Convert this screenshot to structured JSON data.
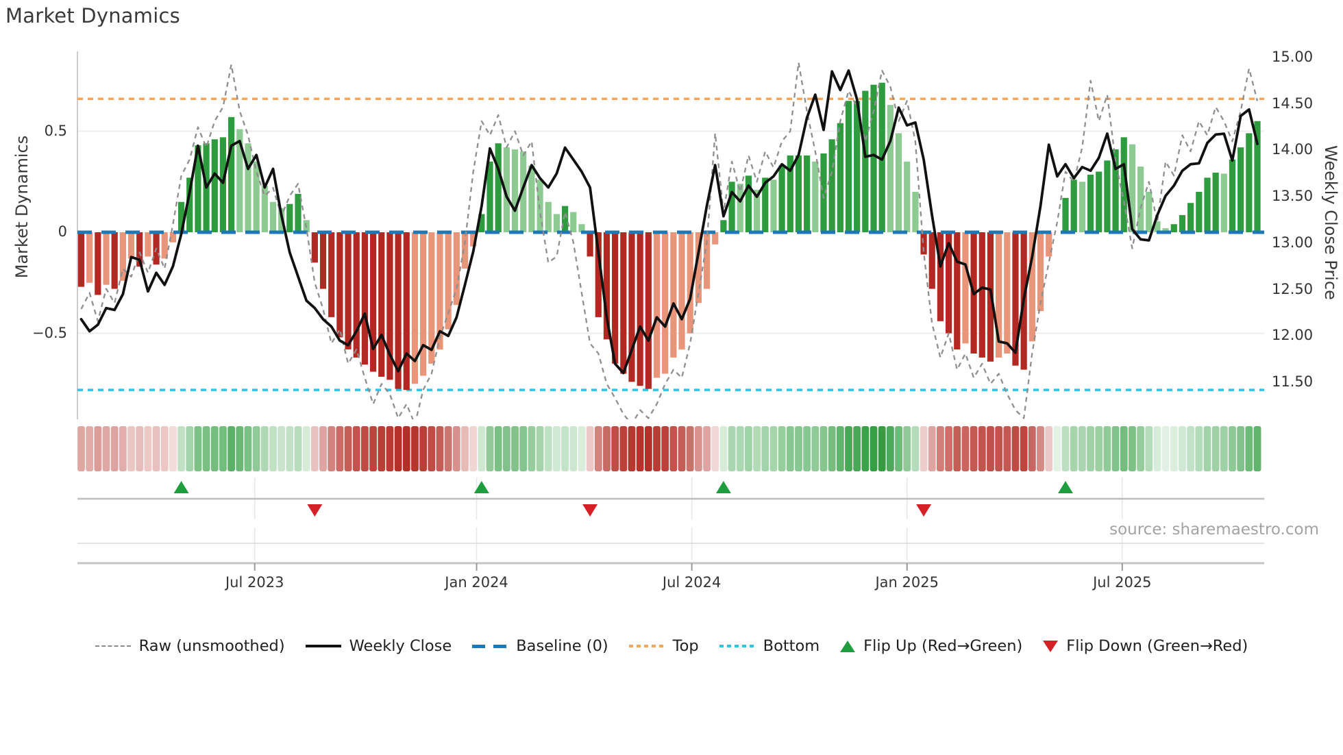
{
  "title": "Market Dynamics",
  "source": "source: sharemaestro.com",
  "axes": {
    "left": {
      "label": "Market Dynamics",
      "ticks": [
        {
          "label": "0.5",
          "value": 0.5
        },
        {
          "label": "0",
          "value": 0
        },
        {
          "label": "−0.5",
          "value": -0.5
        }
      ]
    },
    "right": {
      "label": "Weekly Close Price",
      "ticks": [
        {
          "label": "15.00",
          "value": 15.0
        },
        {
          "label": "14.50",
          "value": 14.5
        },
        {
          "label": "14.00",
          "value": 14.0
        },
        {
          "label": "13.50",
          "value": 13.5
        },
        {
          "label": "13.00",
          "value": 13.0
        },
        {
          "label": "12.50",
          "value": 12.5
        },
        {
          "label": "12.00",
          "value": 12.0
        },
        {
          "label": "11.50",
          "value": 11.5
        }
      ]
    },
    "x": {
      "ticks": [
        {
          "label": "Jul 2023",
          "week": 20.8
        },
        {
          "label": "Jan 2024",
          "week": 47.4
        },
        {
          "label": "Jul 2024",
          "week": 73.2
        },
        {
          "label": "Jan 2025",
          "week": 99.0
        },
        {
          "label": "Jul 2025",
          "week": 124.8
        }
      ]
    }
  },
  "legend": {
    "raw": "Raw (unsmoothed)",
    "close": "Weekly Close",
    "baseline": "Baseline (0)",
    "top": "Top",
    "bottom": "Bottom",
    "flip_up": "Flip Up (Red→Green)",
    "flip_down": "Flip Down (Green→Red)"
  },
  "colors": {
    "bar_up_strong": "#2e9b3e",
    "bar_up_soft": "#8ecb92",
    "bar_down_strong": "#b22823",
    "bar_down_soft": "#e8957a",
    "heat_up": "34,150,50",
    "heat_down": "178,40,32",
    "weekly_close": "#111111",
    "raw": "#8f8f8f",
    "baseline": "#1f77b4",
    "top": "#f5a55c",
    "bottom": "#2ec4e8",
    "flip_up": "#1e9e3e",
    "flip_down": "#d62027",
    "grid": "#ededf1",
    "spine": "#cccccc",
    "marker_line": "#bdbdbd",
    "row2_line": "#dadade",
    "axis_line": "#c4c4c4"
  },
  "chart_data": {
    "type": "bar+line",
    "weeks": 142,
    "baseline": 0,
    "top_line": 0.66,
    "bottom_line": -0.78,
    "left_axis_range": [
      -0.92,
      0.9
    ],
    "right_axis_range": [
      11.5,
      15.0
    ],
    "flip_up_weeks": [
      12,
      48,
      77,
      118
    ],
    "flip_down_weeks": [
      28,
      61,
      101
    ],
    "bars_smoothed": [
      -0.27,
      -0.25,
      -0.31,
      -0.26,
      -0.28,
      -0.24,
      -0.13,
      -0.17,
      -0.12,
      -0.16,
      -0.13,
      -0.05,
      0.15,
      0.27,
      0.43,
      0.44,
      0.46,
      0.47,
      0.57,
      0.51,
      0.44,
      0.35,
      0.23,
      0.15,
      0.12,
      0.14,
      0.19,
      0.06,
      -0.15,
      -0.28,
      -0.42,
      -0.52,
      -0.58,
      -0.62,
      -0.655,
      -0.69,
      -0.715,
      -0.73,
      -0.775,
      -0.78,
      -0.75,
      -0.71,
      -0.65,
      -0.58,
      -0.48,
      -0.36,
      -0.18,
      -0.07,
      0.09,
      0.35,
      0.44,
      0.42,
      0.41,
      0.4,
      0.33,
      0.26,
      0.15,
      0.09,
      0.13,
      0.1,
      0.04,
      -0.12,
      -0.42,
      -0.53,
      -0.65,
      -0.7,
      -0.74,
      -0.76,
      -0.775,
      -0.72,
      -0.7,
      -0.62,
      -0.58,
      -0.5,
      -0.35,
      -0.28,
      -0.06,
      0.06,
      0.25,
      0.24,
      0.28,
      0.21,
      0.27,
      0.26,
      0.33,
      0.38,
      0.38,
      0.38,
      0.35,
      0.39,
      0.46,
      0.54,
      0.65,
      0.65,
      0.7,
      0.73,
      0.74,
      0.63,
      0.49,
      0.35,
      0.2,
      -0.11,
      -0.28,
      -0.44,
      -0.5,
      -0.58,
      -0.55,
      -0.6,
      -0.62,
      -0.64,
      -0.62,
      -0.6,
      -0.66,
      -0.68,
      -0.54,
      -0.39,
      -0.12,
      0.0,
      0.17,
      0.26,
      0.25,
      0.285,
      0.3,
      0.355,
      0.41,
      0.47,
      0.435,
      0.325,
      0.2,
      0.055,
      0.02,
      0.04,
      0.085,
      0.145,
      0.2,
      0.27,
      0.295,
      0.29,
      0.36,
      0.42,
      0.49,
      0.55
    ],
    "raw": [
      -0.38,
      -0.3,
      -0.44,
      -0.28,
      -0.35,
      -0.18,
      -0.22,
      -0.1,
      -0.2,
      -0.08,
      -0.18,
      0.04,
      0.28,
      0.36,
      0.52,
      0.42,
      0.55,
      0.62,
      0.83,
      0.6,
      0.48,
      0.3,
      0.18,
      0.22,
      0.08,
      0.18,
      0.24,
      0.02,
      -0.25,
      -0.38,
      -0.55,
      -0.48,
      -0.65,
      -0.58,
      -0.72,
      -0.85,
      -0.75,
      -0.8,
      -0.92,
      -0.85,
      -0.95,
      -0.78,
      -0.7,
      -0.52,
      -0.4,
      -0.28,
      -0.05,
      0.3,
      0.55,
      0.48,
      0.58,
      0.42,
      0.5,
      0.38,
      0.45,
      0.1,
      -0.15,
      -0.12,
      0.1,
      -0.05,
      -0.3,
      -0.55,
      -0.6,
      -0.75,
      -0.82,
      -0.9,
      -0.95,
      -0.88,
      -0.92,
      -0.85,
      -0.75,
      -0.68,
      -0.72,
      -0.55,
      -0.3,
      -0.05,
      0.49,
      0.1,
      0.35,
      0.2,
      0.38,
      0.25,
      0.4,
      0.32,
      0.45,
      0.5,
      0.84,
      0.6,
      0.4,
      0.17,
      0.3,
      0.55,
      0.7,
      0.62,
      0.45,
      0.6,
      0.8,
      0.72,
      0.55,
      0.65,
      0.45,
      -0.1,
      -0.45,
      -0.62,
      -0.5,
      -0.68,
      -0.6,
      -0.72,
      -0.65,
      -0.75,
      -0.7,
      -0.8,
      -0.88,
      -0.92,
      -0.6,
      -0.35,
      -0.15,
      0.05,
      0.3,
      0.25,
      0.42,
      0.75,
      0.55,
      0.68,
      0.35,
      0.15,
      -0.08,
      0.12,
      0.25,
      0.05,
      0.35,
      0.28,
      0.48,
      0.4,
      0.55,
      0.48,
      0.62,
      0.55,
      0.45,
      0.6,
      0.81,
      0.65
    ],
    "weekly_close": [
      12.18,
      12.05,
      12.12,
      12.3,
      12.28,
      12.45,
      12.85,
      12.82,
      12.48,
      12.68,
      12.55,
      12.75,
      13.1,
      13.55,
      14.05,
      13.6,
      13.75,
      13.65,
      14.05,
      14.1,
      13.8,
      13.95,
      13.6,
      13.8,
      13.3,
      12.9,
      12.64,
      12.38,
      12.3,
      12.18,
      12.1,
      11.95,
      11.9,
      12.05,
      12.24,
      11.86,
      12.01,
      11.8,
      11.62,
      11.81,
      11.73,
      11.9,
      11.85,
      12.05,
      12.0,
      12.2,
      12.55,
      12.91,
      13.4,
      14.02,
      13.8,
      13.5,
      13.35,
      13.6,
      13.84,
      13.7,
      13.6,
      13.75,
      14.03,
      13.9,
      13.77,
      13.6,
      12.9,
      12.2,
      11.7,
      11.6,
      11.85,
      12.1,
      11.95,
      12.2,
      12.1,
      12.35,
      12.18,
      12.4,
      12.9,
      13.4,
      13.84,
      13.29,
      13.55,
      13.45,
      13.62,
      13.5,
      13.65,
      13.72,
      13.85,
      13.78,
      13.95,
      14.35,
      14.6,
      14.22,
      14.85,
      14.65,
      14.86,
      14.55,
      13.93,
      13.95,
      13.9,
      14.1,
      14.46,
      14.27,
      14.3,
      13.9,
      13.3,
      12.75,
      13.0,
      12.8,
      12.77,
      12.45,
      12.52,
      12.5,
      11.94,
      11.92,
      11.82,
      12.4,
      12.85,
      13.4,
      14.06,
      13.72,
      13.85,
      13.7,
      13.82,
      13.78,
      13.92,
      14.18,
      13.8,
      13.85,
      13.15,
      13.04,
      13.03,
      13.3,
      13.51,
      13.62,
      13.78,
      13.85,
      13.86,
      14.08,
      14.17,
      14.18,
      13.89,
      14.37,
      14.44,
      14.07
    ]
  }
}
